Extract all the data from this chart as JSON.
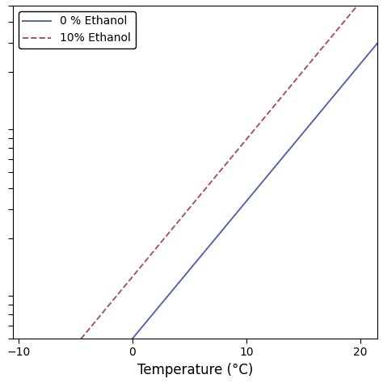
{
  "xlabel": "Temperature (°C)",
  "xlim": [
    -10.5,
    21.5
  ],
  "ylim": [
    0.5,
    35
  ],
  "xticks": [
    -10,
    0,
    10,
    20
  ],
  "legend_labels": [
    "0 % Ethanol",
    "10% Ethanol"
  ],
  "line0_color": "#5566aa",
  "line1_color": "#aa5555",
  "line0_style": "solid",
  "line1_style": "dashed",
  "line_width": 1.4,
  "background_color": "#ffffff",
  "legend_loc": "upper left",
  "curve0_A": 0.5,
  "curve0_B": 0.19,
  "curve1_shift": 4.5,
  "T_start": -10.5,
  "T_end": 21.5,
  "legend_fontsize": 10,
  "xlabel_fontsize": 12
}
